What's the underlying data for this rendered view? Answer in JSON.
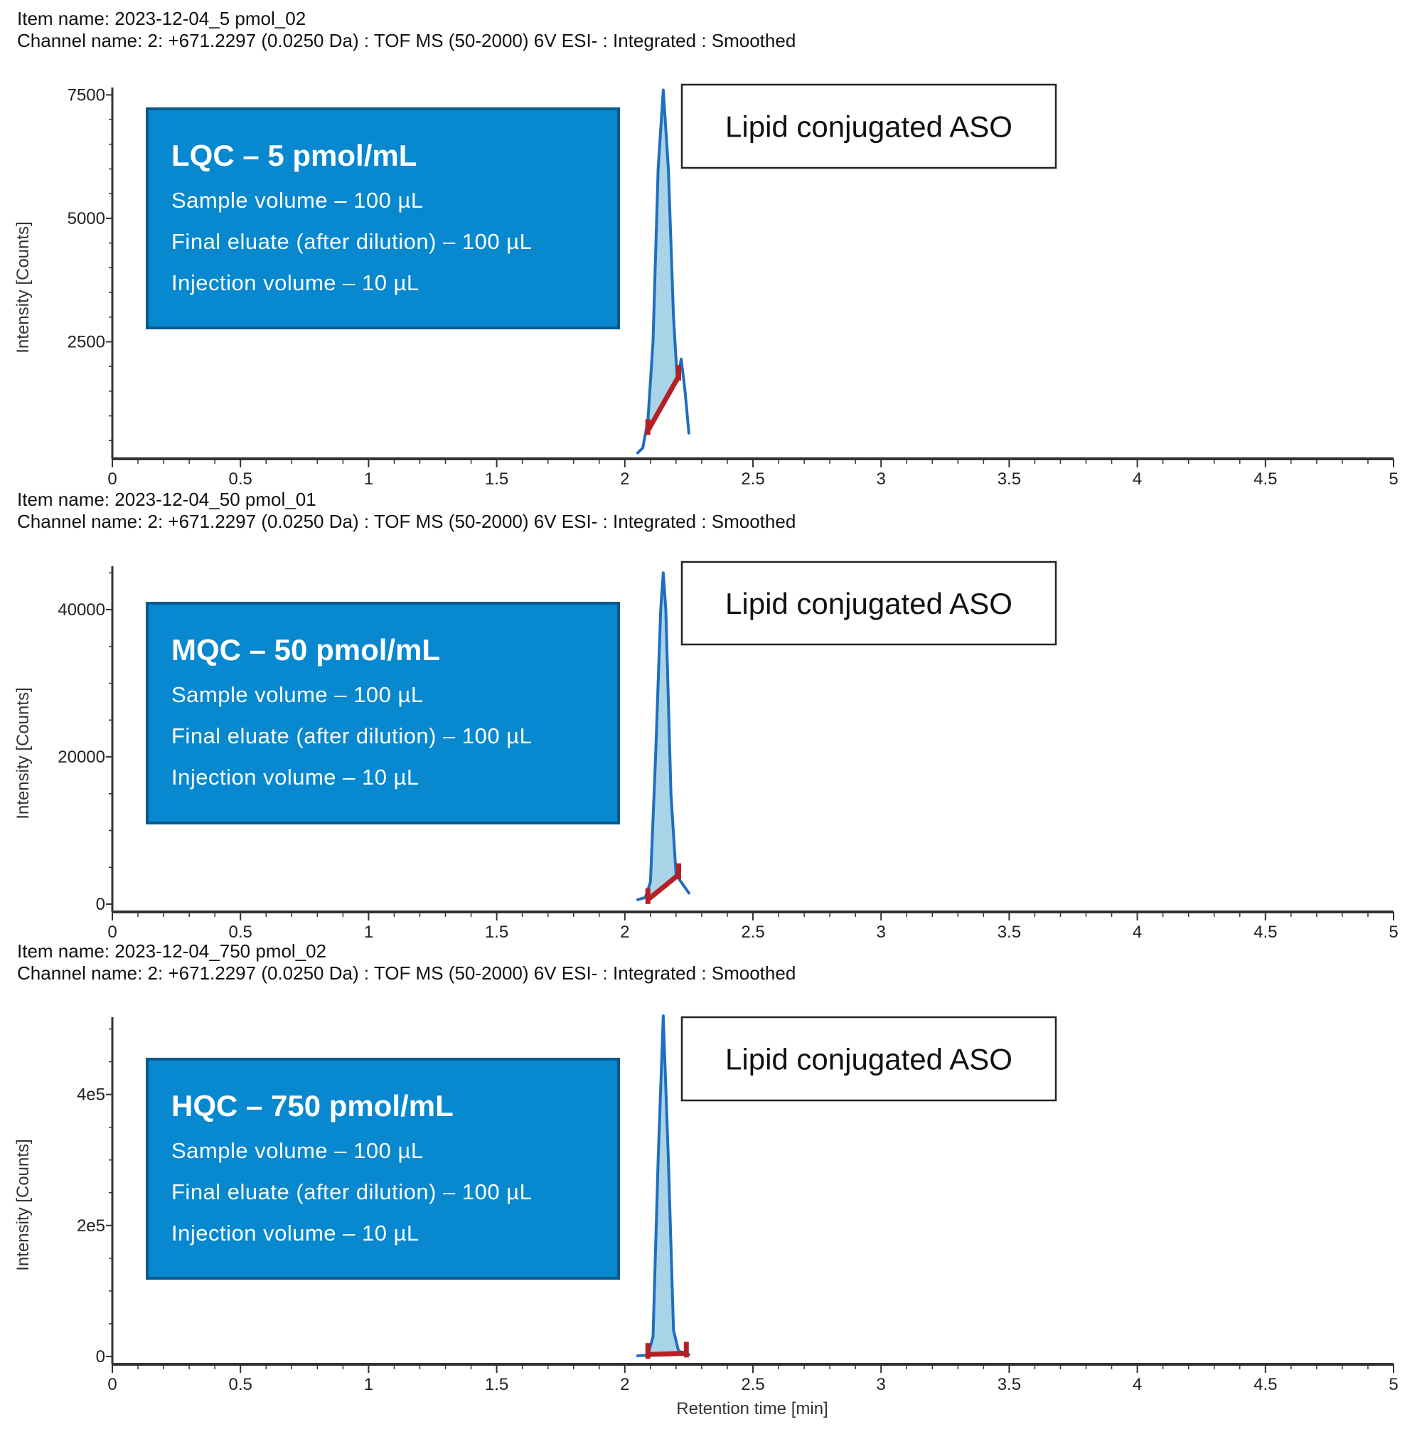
{
  "colors": {
    "trace": "#1f6fbf",
    "fill": "#a9d3e6",
    "baseline": "#b42025",
    "box": "#0788cf",
    "box_border": "#0a5a8f"
  },
  "chart_data": [
    {
      "type": "line",
      "item_name": "Item name: 2023-12-04_5 pmol_02",
      "channel_name": "Channel name: 2: +671.2297 (0.0250 Da) : TOF MS (50-2000) 6V ESI- : Integrated : Smoothed",
      "ylabel": "Intensity [Counts]",
      "xlabel": "",
      "xlim": [
        0,
        5
      ],
      "ylim": [
        130,
        7650
      ],
      "xticks": [
        "0",
        "0.5",
        "1",
        "1.5",
        "2",
        "2.5",
        "3",
        "3.5",
        "4",
        "4.5",
        "5"
      ],
      "yticks": [
        {
          "v": 2500,
          "label": "2500"
        },
        {
          "v": 5000,
          "label": "5000"
        },
        {
          "v": 7500,
          "label": "7500"
        }
      ],
      "yminor": 500,
      "box": {
        "title": "LQC – 5 pmol/mL",
        "lines": [
          "Sample volume – 100 µL",
          "Final eluate (after dilution) – 100 µL",
          "Injection volume – 10 µL"
        ]
      },
      "annotation": "Lipid conjugated ASO",
      "series": {
        "x": [
          2.05,
          2.07,
          2.09,
          2.11,
          2.13,
          2.15,
          2.17,
          2.19,
          2.205,
          2.22,
          2.235,
          2.25
        ],
        "y": [
          250,
          350,
          900,
          2500,
          6000,
          7600,
          6000,
          3000,
          1700,
          2150,
          1500,
          650
        ]
      },
      "integration_baseline": {
        "x": [
          2.09,
          2.21
        ],
        "y": [
          700,
          1800
        ]
      }
    },
    {
      "type": "line",
      "item_name": "Item name: 2023-12-04_50 pmol_01",
      "channel_name": "Channel name: 2: +671.2297 (0.0250 Da) : TOF MS (50-2000) 6V ESI- : Integrated : Smoothed",
      "ylabel": "Intensity [Counts]",
      "xlabel": "",
      "xlim": [
        0,
        5
      ],
      "ylim": [
        -1060,
        45900
      ],
      "xticks": [
        "0",
        "0.5",
        "1",
        "1.5",
        "2",
        "2.5",
        "3",
        "3.5",
        "4",
        "4.5",
        "5"
      ],
      "yticks": [
        {
          "v": 0,
          "label": "0"
        },
        {
          "v": 20000,
          "label": "20000"
        },
        {
          "v": 40000,
          "label": "40000"
        }
      ],
      "yminor": 5000,
      "box": {
        "title": "MQC – 50 pmol/mL",
        "lines": [
          "Sample volume – 100 µL",
          "Final eluate (after dilution) – 100 µL",
          "Injection volume – 10 µL"
        ]
      },
      "annotation": "Lipid conjugated ASO",
      "series": {
        "x": [
          2.05,
          2.08,
          2.1,
          2.12,
          2.14,
          2.15,
          2.16,
          2.18,
          2.2,
          2.22,
          2.25
        ],
        "y": [
          600,
          900,
          3000,
          20000,
          40000,
          45000,
          40000,
          15000,
          4000,
          3000,
          1500
        ]
      },
      "integration_baseline": {
        "x": [
          2.09,
          2.21
        ],
        "y": [
          600,
          4000
        ]
      }
    },
    {
      "type": "line",
      "item_name": "Item name: 2023-12-04_750 pmol_02",
      "channel_name": "Channel name: 2: +671.2297 (0.0250 Da) : TOF MS (50-2000) 6V ESI- : Integrated : Smoothed",
      "ylabel": "Intensity [Counts]",
      "xlabel": "Retention time [min]",
      "xlim": [
        0,
        5
      ],
      "ylim": [
        -12000,
        518000
      ],
      "xticks": [
        "0",
        "0.5",
        "1",
        "1.5",
        "2",
        "2.5",
        "3",
        "3.5",
        "4",
        "4.5",
        "5"
      ],
      "yticks": [
        {
          "v": 0,
          "label": "0"
        },
        {
          "v": 200000,
          "label": "2e5"
        },
        {
          "v": 400000,
          "label": "4e5"
        }
      ],
      "yminor": 50000,
      "box": {
        "title": "HQC – 750 pmol/mL",
        "lines": [
          "Sample volume – 100 µL",
          "Final eluate (after dilution) – 100 µL",
          "Injection volume – 10 µL"
        ]
      },
      "annotation": "Lipid conjugated ASO",
      "series": {
        "x": [
          2.05,
          2.09,
          2.11,
          2.13,
          2.15,
          2.17,
          2.19,
          2.21,
          2.25
        ],
        "y": [
          1000,
          2000,
          30000,
          300000,
          520000,
          300000,
          40000,
          8000,
          3000
        ]
      },
      "integration_baseline": {
        "x": [
          2.09,
          2.24
        ],
        "y": [
          3000,
          5000
        ]
      }
    }
  ]
}
